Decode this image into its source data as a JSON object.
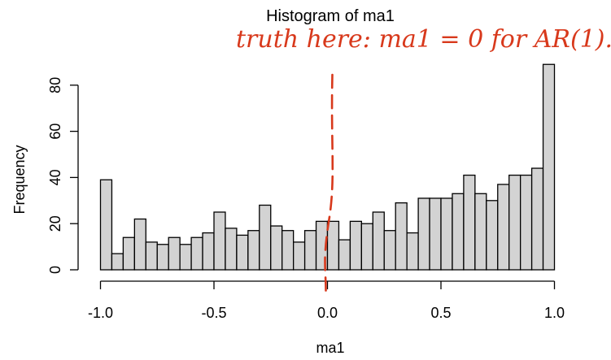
{
  "chart_data": {
    "type": "bar",
    "title": "Histogram of ma1",
    "xlabel": "ma1",
    "ylabel": "Frequency",
    "bin_edges_start": -1.0,
    "bin_width": 0.05,
    "values": [
      39,
      7,
      14,
      22,
      12,
      11,
      14,
      11,
      14,
      16,
      25,
      18,
      15,
      17,
      28,
      19,
      17,
      12,
      17,
      21,
      21,
      13,
      21,
      20,
      25,
      17,
      29,
      16,
      31,
      31,
      31,
      33,
      41,
      33,
      30,
      37,
      41,
      41,
      44,
      89
    ],
    "xlim": [
      -1.0,
      1.0
    ],
    "ylim": [
      0,
      85
    ],
    "x_ticks": [
      -1.0,
      -0.5,
      0.0,
      0.5,
      1.0
    ],
    "x_tick_labels": [
      "-1.0",
      "-0.5",
      "0.0",
      "0.5",
      "1.0"
    ],
    "y_ticks": [
      0,
      20,
      40,
      60,
      80
    ],
    "y_tick_labels": [
      "0",
      "20",
      "40",
      "60",
      "80"
    ],
    "bar_fill": "#d3d3d3",
    "bar_stroke": "#000000",
    "annotation": {
      "text": "truth here: ma1 = 0 for AR(1).",
      "color": "#d8391c",
      "line_x": 0.0
    }
  }
}
